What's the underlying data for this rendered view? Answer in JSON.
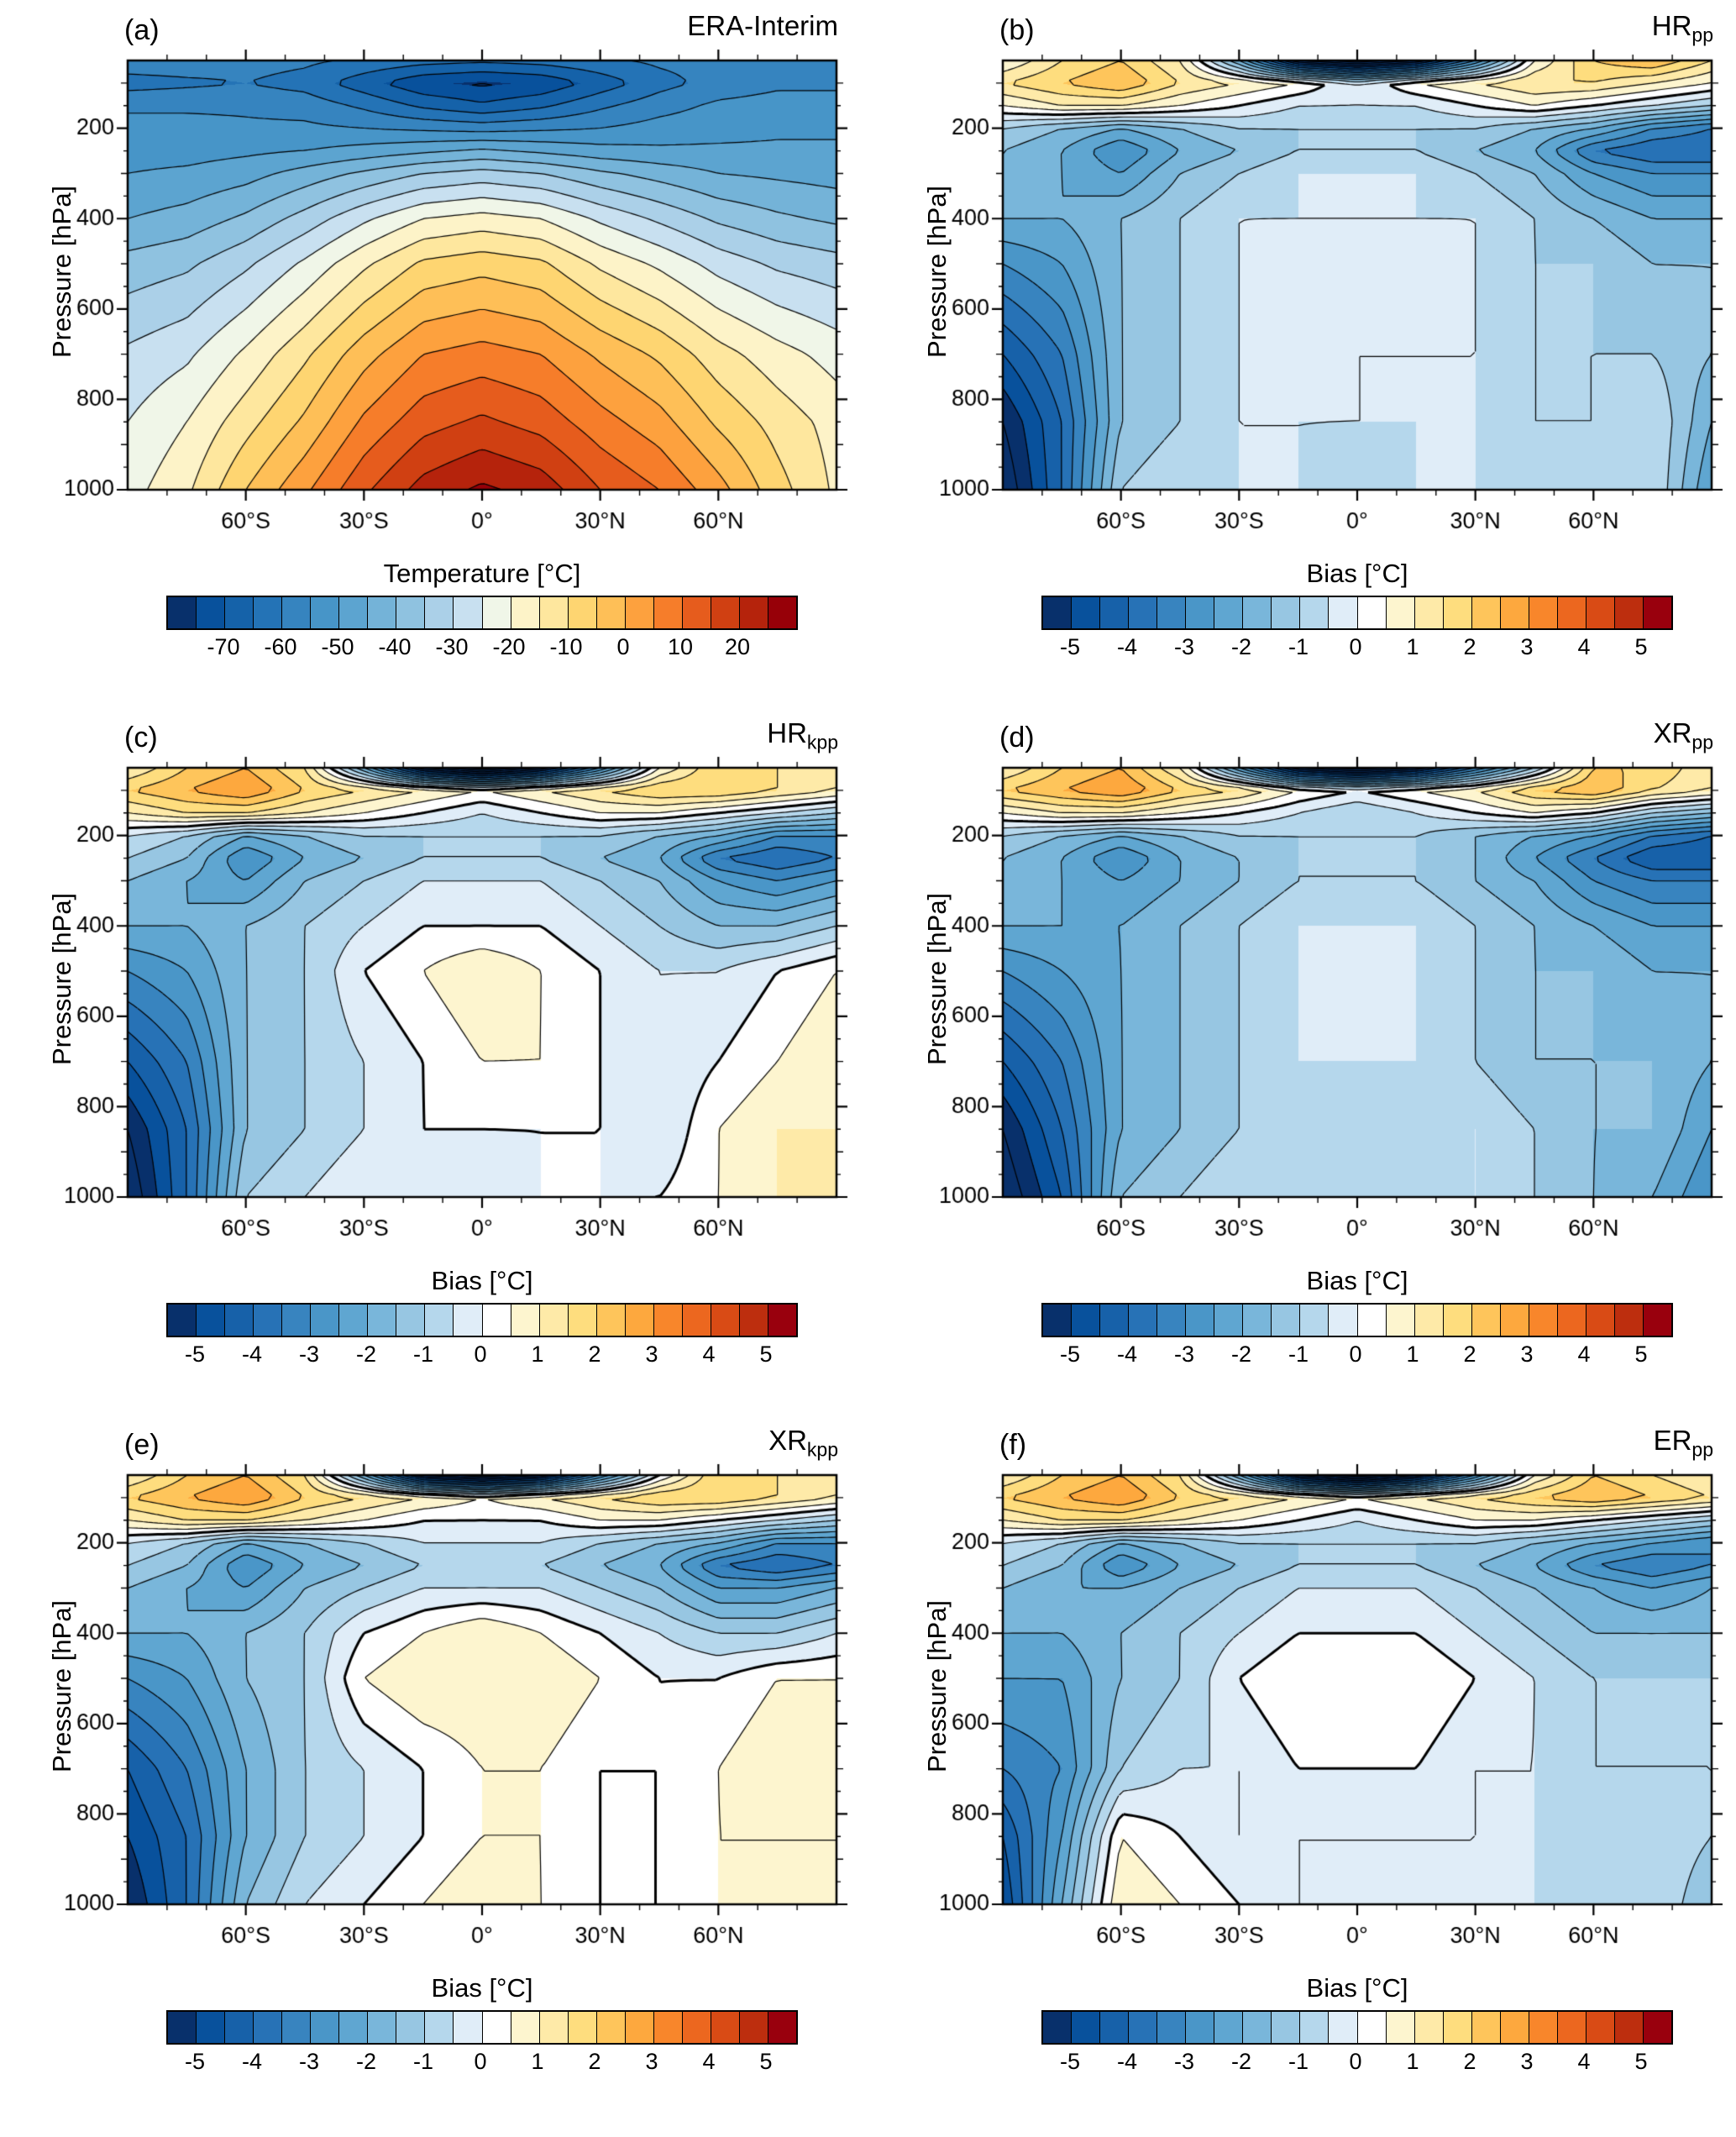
{
  "chart_data": {
    "type": "heatmap",
    "ylabel": "Pressure [hPa]",
    "x_tick_values": [
      -60,
      -30,
      0,
      30,
      60
    ],
    "x_tick_labels": [
      "60°S",
      "30°S",
      "0°",
      "30°N",
      "60°N"
    ],
    "y_tick_values": [
      200,
      400,
      600,
      800,
      1000
    ],
    "y_tick_labels": [
      "200",
      "400",
      "600",
      "800",
      "1000"
    ],
    "y_range": [
      50,
      1000
    ],
    "x_lat": [
      -90,
      -75,
      -60,
      -45,
      -30,
      -15,
      0,
      15,
      30,
      45,
      60,
      75,
      90
    ],
    "y_pressure": [
      50,
      100,
      150,
      200,
      250,
      300,
      400,
      500,
      700,
      850,
      1000
    ],
    "colormaps": {
      "temperature": {
        "title": "Temperature [°C]",
        "edges_start": -75,
        "edges_step": 5,
        "label_offset": 2,
        "tick_labels": [
          "-70",
          "-60",
          "-50",
          "-40",
          "-30",
          "-20",
          "-10",
          "0",
          "10",
          "20"
        ],
        "colors": [
          "#08306b",
          "#08519c",
          "#1562a9",
          "#2473b6",
          "#3684bf",
          "#4795c8",
          "#5ca4d0",
          "#74b3d8",
          "#8fc2e0",
          "#abd0e8",
          "#c8e0f0",
          "#f0f6e8",
          "#fdf3c8",
          "#fee79e",
          "#fed571",
          "#febf57",
          "#fda13e",
          "#f67d2a",
          "#e65c1d",
          "#d04012",
          "#b5230c",
          "#970008"
        ]
      },
      "bias": {
        "title": "Bias [°C]",
        "edges_start": -5,
        "edges_step": 0.5,
        "label_offset": 1,
        "tick_labels": [
          "-5",
          "-4",
          "-3",
          "-2",
          "-1",
          "0",
          "1",
          "2",
          "3",
          "4",
          "5"
        ],
        "colors": [
          "#08306b",
          "#08519c",
          "#1761a9",
          "#2772b6",
          "#3884bf",
          "#4a96c8",
          "#5fa6d1",
          "#79b6da",
          "#97c6e2",
          "#b5d7ec",
          "#e0edf8",
          "#ffffff",
          "#fdf5cf",
          "#feeaa8",
          "#fedd7e",
          "#fec55b",
          "#fda83e",
          "#f8862b",
          "#ec671f",
          "#d94b15",
          "#bd2e0e",
          "#99000d"
        ]
      }
    },
    "panels": [
      {
        "letter": "(a)",
        "title_main": "ERA-Interim",
        "title_sub": "",
        "colormap": "temperature",
        "line_start": -75,
        "line_step": 5,
        "line_count": 21,
        "values": [
          [
            -57,
            -57,
            -58,
            -59,
            -61,
            -63,
            -64,
            -63,
            -61,
            -59,
            -58,
            -57,
            -57
          ],
          [
            -62,
            -61,
            -60,
            -62,
            -68,
            -74,
            -76,
            -74,
            -68,
            -62,
            -58,
            -56,
            -56
          ],
          [
            -56,
            -56,
            -56,
            -57,
            -61,
            -66,
            -69,
            -66,
            -61,
            -57,
            -54,
            -53,
            -53
          ],
          [
            -53,
            -53,
            -54,
            -54,
            -55,
            -56,
            -57,
            -56,
            -55,
            -53,
            -52,
            -51,
            -51
          ],
          [
            -52,
            -52,
            -51,
            -50,
            -48,
            -46,
            -44,
            -46,
            -48,
            -49,
            -49,
            -49,
            -49
          ],
          [
            -50,
            -49,
            -47,
            -43,
            -39,
            -35,
            -33,
            -35,
            -39,
            -42,
            -45,
            -46,
            -47
          ],
          [
            -45,
            -43,
            -39,
            -33,
            -26,
            -20,
            -18,
            -20,
            -26,
            -31,
            -36,
            -39,
            -41
          ],
          [
            -38,
            -36,
            -31,
            -24,
            -16,
            -9,
            -7,
            -9,
            -16,
            -21,
            -27,
            -31,
            -33
          ],
          [
            -29,
            -26,
            -19,
            -11,
            -2,
            5,
            7,
            5,
            -1,
            -6,
            -13,
            -18,
            -22
          ],
          [
            -25,
            -20,
            -12,
            -4,
            6,
            13,
            16,
            13,
            7,
            2,
            -6,
            -12,
            -17
          ],
          [
            -22,
            -16,
            -5,
            4,
            14,
            22,
            26,
            23,
            15,
            10,
            2,
            -8,
            -16
          ]
        ]
      },
      {
        "letter": "(b)",
        "title_main": "HR",
        "title_sub": "pp",
        "colormap": "bias",
        "line_start": -8,
        "line_step": 0.5,
        "line_count": 33,
        "values": [
          [
            0.5,
            1.5,
            2,
            1,
            -2,
            -6,
            -7,
            -6,
            -3,
            0.5,
            2,
            2.5,
            1.5
          ],
          [
            1.5,
            2,
            2.5,
            1.5,
            1,
            0.5,
            -0.5,
            0.5,
            1,
            1.5,
            1.5,
            1,
            0.5
          ],
          [
            0.5,
            1,
            1,
            0.5,
            0,
            -0.5,
            -0.5,
            -0.5,
            0,
            0.5,
            0,
            -0.5,
            -1
          ],
          [
            -1,
            -1.5,
            -2,
            -1.5,
            -1,
            -1,
            -1,
            -1,
            -1,
            -1.5,
            -2,
            -3,
            -3.5
          ],
          [
            -1.5,
            -2,
            -3,
            -2,
            -1.5,
            -1,
            -1,
            -1,
            -1.5,
            -2,
            -3.5,
            -4,
            -4
          ],
          [
            -1.5,
            -2,
            -2.5,
            -1.5,
            -1,
            -0.5,
            -0.5,
            -0.5,
            -1,
            -1.5,
            -2.5,
            -3,
            -3
          ],
          [
            -2,
            -2,
            -1.5,
            -1,
            -0.5,
            -0.5,
            -0.5,
            -0.5,
            -0.5,
            -1,
            -1.5,
            -2,
            -2
          ],
          [
            -3,
            -2.5,
            -1.5,
            -1,
            -0.5,
            0,
            0,
            0,
            -0.5,
            -1,
            -1,
            -1.5,
            -1.5
          ],
          [
            -4.5,
            -3.5,
            -1.5,
            -1,
            -0.5,
            0,
            -0.5,
            -0.5,
            -0.5,
            -1,
            -1,
            -1,
            -1.5
          ],
          [
            -5.5,
            -4,
            -1.5,
            -1,
            -0.5,
            -0.5,
            -0.5,
            -0.5,
            -0.5,
            -1,
            -1,
            -0.5,
            -2
          ],
          [
            -6,
            -4,
            -1,
            -0.5,
            -0.5,
            -0.5,
            -1,
            -0.5,
            -0.5,
            -0.5,
            -1,
            -0.5,
            -2.5
          ]
        ]
      },
      {
        "letter": "(c)",
        "title_main": "HR",
        "title_sub": "kpp",
        "colormap": "bias",
        "line_start": -8,
        "line_step": 0.5,
        "line_count": 33,
        "values": [
          [
            1,
            2,
            2.5,
            1.5,
            -2,
            -6,
            -7.5,
            -6,
            -3,
            0.5,
            2,
            1.5,
            1
          ],
          [
            2,
            2.5,
            3,
            2,
            1.5,
            1,
            0.5,
            1,
            1.5,
            2,
            2,
            1.5,
            1
          ],
          [
            1,
            1.5,
            1.5,
            1,
            0.5,
            0,
            -0.5,
            0,
            0.5,
            0.5,
            0,
            -0.5,
            -1
          ],
          [
            -0.5,
            -1,
            -2,
            -1.5,
            -1,
            -1,
            -1,
            -1,
            -1,
            -1.5,
            -2,
            -3,
            -3
          ],
          [
            -1,
            -1.5,
            -3,
            -2,
            -1.5,
            -1,
            -1,
            -1,
            -1.5,
            -2,
            -3.5,
            -4,
            -3.5
          ],
          [
            -1.5,
            -2,
            -2.5,
            -1.5,
            -1,
            -0.5,
            -0.5,
            -0.5,
            -1,
            -1.5,
            -2.5,
            -3,
            -2.5
          ],
          [
            -2,
            -2,
            -1.5,
            -1,
            -0.5,
            0,
            0,
            0,
            -0.5,
            -1,
            -1.5,
            -1.5,
            -1
          ],
          [
            -3,
            -2.5,
            -1.5,
            -1,
            0,
            0.5,
            1,
            0.5,
            0,
            -0.5,
            -0.5,
            0,
            0.5
          ],
          [
            -4.5,
            -3.5,
            -1.5,
            -1,
            -0.5,
            0,
            0.5,
            0.5,
            0,
            -0.5,
            0,
            0.5,
            1
          ],
          [
            -5.5,
            -4,
            -1.5,
            -1,
            -0.5,
            0,
            0,
            0,
            0,
            -0.5,
            0.5,
            1,
            1
          ],
          [
            -6,
            -4,
            -1,
            -0.5,
            0,
            0,
            -0.5,
            0,
            0,
            0,
            0.5,
            1,
            1
          ]
        ]
      },
      {
        "letter": "(d)",
        "title_main": "XR",
        "title_sub": "pp",
        "colormap": "bias",
        "line_start": -8,
        "line_step": 0.5,
        "line_count": 33,
        "values": [
          [
            1,
            2,
            2.5,
            1,
            -2.5,
            -6,
            -7,
            -6,
            -3.5,
            -1,
            2,
            2,
            1
          ],
          [
            2,
            2.5,
            3,
            2,
            1.5,
            0.5,
            0,
            0.5,
            1,
            2,
            2.5,
            1.5,
            1
          ],
          [
            0.5,
            1,
            1,
            0.5,
            0,
            -0.5,
            -1,
            -0.5,
            0,
            0.5,
            0,
            -1,
            -1.5
          ],
          [
            -1,
            -1.5,
            -2,
            -1.5,
            -1,
            -1,
            -1,
            -1,
            -1.5,
            -2,
            -2.5,
            -3.5,
            -4
          ],
          [
            -1.5,
            -2,
            -3,
            -2,
            -1.5,
            -1,
            -1,
            -1,
            -1.5,
            -2.5,
            -3.5,
            -4.5,
            -4.5
          ],
          [
            -1.5,
            -2,
            -2.5,
            -2,
            -1.5,
            -1,
            -1,
            -1,
            -1.5,
            -2,
            -3,
            -3.5,
            -3.5
          ],
          [
            -2,
            -2,
            -2,
            -1.5,
            -1,
            -0.5,
            -0.5,
            -0.5,
            -1,
            -1.5,
            -2,
            -2.5,
            -2.5
          ],
          [
            -3,
            -2.5,
            -2,
            -1.5,
            -1,
            -0.5,
            -0.5,
            -0.5,
            -1,
            -1.5,
            -1.5,
            -2,
            -2
          ],
          [
            -4.5,
            -3.5,
            -2,
            -1.5,
            -1,
            -0.5,
            -0.5,
            -0.5,
            -1,
            -1.5,
            -1.5,
            -1.5,
            -2
          ],
          [
            -5.5,
            -4,
            -2,
            -1.5,
            -1,
            -0.5,
            -1,
            -0.5,
            -0.5,
            -1,
            -1.5,
            -1.5,
            -2.5
          ],
          [
            -6,
            -4.5,
            -1.5,
            -1,
            -0.5,
            -0.5,
            -1,
            -1,
            -0.5,
            -1,
            -1.5,
            -2,
            -3
          ]
        ]
      },
      {
        "letter": "(e)",
        "title_main": "XR",
        "title_sub": "kpp",
        "colormap": "bias",
        "line_start": -8,
        "line_step": 0.5,
        "line_count": 33,
        "values": [
          [
            1,
            2,
            2.5,
            1.5,
            -2,
            -6,
            -7,
            -6,
            -3,
            0,
            2,
            1.5,
            1
          ],
          [
            2,
            2.5,
            3,
            2,
            1.5,
            1,
            0.5,
            1,
            1.5,
            2,
            2,
            1.5,
            1
          ],
          [
            1,
            1.5,
            1.5,
            1,
            0.5,
            0,
            0,
            0,
            0.5,
            0.5,
            0,
            -0.5,
            -1
          ],
          [
            -0.5,
            -1,
            -2,
            -1.5,
            -1,
            -0.5,
            -0.5,
            -0.5,
            -1,
            -1.5,
            -2,
            -3,
            -3
          ],
          [
            -1,
            -1.5,
            -3,
            -2,
            -1.5,
            -1,
            -1,
            -1,
            -1.5,
            -2,
            -3.5,
            -4,
            -3.5
          ],
          [
            -1.5,
            -2,
            -2.5,
            -1.5,
            -1,
            -0.5,
            -0.5,
            -0.5,
            -1,
            -1.5,
            -2.5,
            -2.5,
            -2
          ],
          [
            -2,
            -2,
            -1.5,
            -1,
            0,
            0.5,
            1,
            0.5,
            0,
            -0.5,
            -1,
            -1,
            -0.5
          ],
          [
            -3,
            -2.5,
            -1.5,
            -1,
            0.5,
            1,
            1,
            1,
            0.5,
            0,
            0,
            0.5,
            0.5
          ],
          [
            -4.5,
            -3.5,
            -2,
            -1,
            -0.5,
            0,
            0.5,
            0.5,
            0,
            0,
            0.5,
            1,
            1
          ],
          [
            -5,
            -4,
            -2,
            -1,
            -0.5,
            0,
            0.5,
            0.5,
            0,
            0,
            0.5,
            0.5,
            0.5
          ],
          [
            -5.5,
            -4,
            -1.5,
            -0.5,
            0,
            0.5,
            1,
            0.5,
            0,
            0,
            0.5,
            0.5,
            0.5
          ]
        ]
      },
      {
        "letter": "(f)",
        "title_main": "ER",
        "title_sub": "pp",
        "colormap": "bias",
        "line_start": -8,
        "line_step": 0.5,
        "line_count": 33,
        "values": [
          [
            1,
            2,
            2.5,
            1.5,
            -2,
            -6,
            -7.5,
            -6,
            -3,
            0.5,
            2,
            1.5,
            1
          ],
          [
            2,
            2.5,
            3,
            2,
            1.5,
            1,
            0.5,
            1,
            1.5,
            2,
            2.5,
            2,
            1.5
          ],
          [
            1,
            1.5,
            1.5,
            1,
            0.5,
            0,
            -0.5,
            0,
            0.5,
            0.5,
            0,
            -0.5,
            -1
          ],
          [
            -0.5,
            -1,
            -2,
            -1.5,
            -1,
            -1,
            -1,
            -1,
            -1,
            -1.5,
            -2,
            -2.5,
            -3
          ],
          [
            -1,
            -1.5,
            -3,
            -2,
            -1.5,
            -1,
            -1,
            -1,
            -1.5,
            -2,
            -3,
            -3.5,
            -3
          ],
          [
            -1.5,
            -2,
            -2,
            -1.5,
            -1,
            -0.5,
            -0.5,
            -0.5,
            -1,
            -1.5,
            -2,
            -2.5,
            -2
          ],
          [
            -2,
            -2,
            -1.5,
            -1,
            -0.5,
            0,
            0,
            0,
            -0.5,
            -1,
            -1.5,
            -1.5,
            -1.5
          ],
          [
            -2.5,
            -2.5,
            -1.5,
            -1,
            0,
            0.5,
            0.5,
            0.5,
            0,
            -0.5,
            -1,
            -1,
            -1
          ],
          [
            -3.5,
            -3,
            -1,
            -0.5,
            -0.5,
            0,
            0,
            0,
            -0.5,
            -0.5,
            -1,
            -1,
            -1
          ],
          [
            -4.5,
            -2.5,
            0.5,
            0,
            -0.5,
            -0.5,
            -0.5,
            -0.5,
            -0.5,
            -0.5,
            -1,
            -0.5,
            -1
          ],
          [
            -5,
            -2,
            1,
            0.5,
            0,
            -0.5,
            -0.5,
            -0.5,
            -0.5,
            -0.5,
            -1,
            -0.5,
            -1.5
          ]
        ]
      }
    ]
  }
}
